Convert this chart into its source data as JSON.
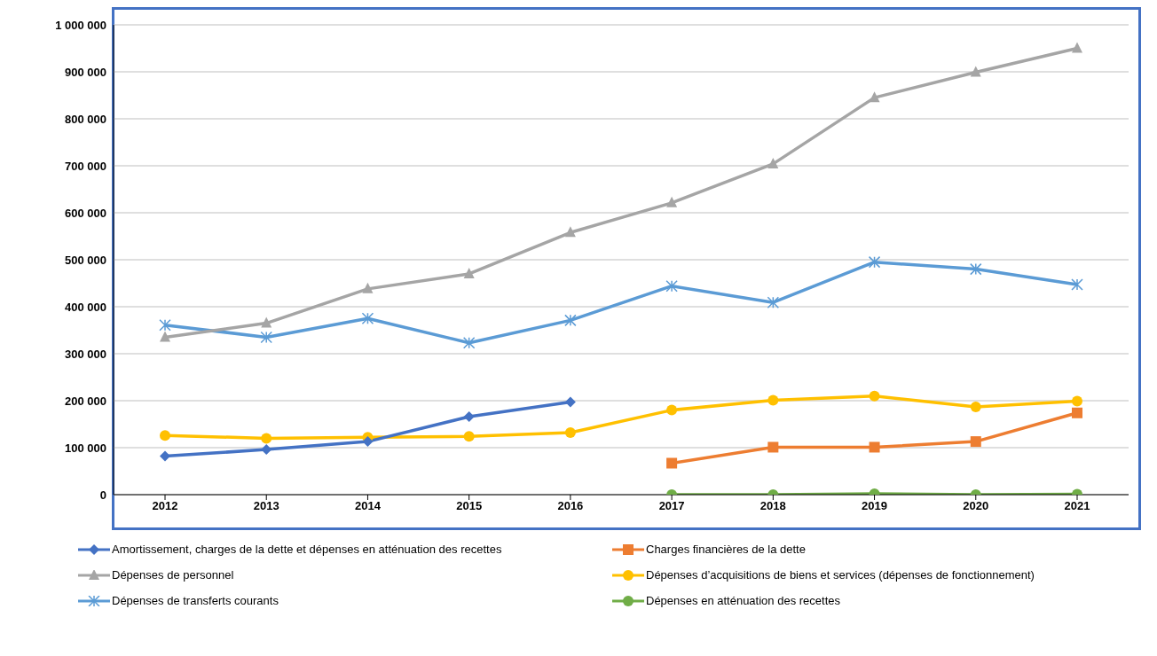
{
  "chart_data": {
    "type": "line",
    "categories": [
      "2012",
      "2013",
      "2014",
      "2015",
      "2016",
      "2017",
      "2018",
      "2019",
      "2020",
      "2021"
    ],
    "series": [
      {
        "name": "Amortissement, charges de la dette et dépenses en atténuation des recettes",
        "color": "#4472c4",
        "marker": "diamond",
        "values": [
          82000,
          96000,
          113000,
          166000,
          197000,
          null,
          null,
          null,
          null,
          null
        ]
      },
      {
        "name": "Charges financières de la dette",
        "color": "#ed7d31",
        "marker": "square",
        "values": [
          null,
          null,
          null,
          null,
          null,
          67000,
          101000,
          101000,
          113000,
          174000
        ]
      },
      {
        "name": "Dépenses de personnel",
        "color": "#a5a5a5",
        "marker": "triangle",
        "values": [
          335000,
          365000,
          438000,
          470000,
          558000,
          621000,
          704000,
          845000,
          899000,
          950000
        ]
      },
      {
        "name": "Dépenses d’acquisitions de biens et services (dépenses de fonctionnement)",
        "color": "#ffc000",
        "marker": "circle",
        "values": [
          126000,
          120000,
          122000,
          124000,
          132000,
          180000,
          201000,
          210000,
          187000,
          199000
        ]
      },
      {
        "name": "Dépenses de transferts courants",
        "color": "#5b9bd5",
        "marker": "cross",
        "values": [
          361000,
          335000,
          375000,
          323000,
          371000,
          444000,
          409000,
          495000,
          480000,
          447000
        ]
      },
      {
        "name": "Dépenses en atténuation des recettes",
        "color": "#70ad47",
        "marker": "circle",
        "values": [
          null,
          null,
          null,
          null,
          null,
          0,
          0,
          2000,
          0,
          1000
        ]
      }
    ],
    "ylim": [
      0,
      1000000
    ],
    "yticks": [
      {
        "value": 0,
        "label": "0"
      },
      {
        "value": 100000,
        "label": "100 000"
      },
      {
        "value": 200000,
        "label": "200 000"
      },
      {
        "value": 300000,
        "label": "300 000"
      },
      {
        "value": 400000,
        "label": "400 000"
      },
      {
        "value": 500000,
        "label": "500 000"
      },
      {
        "value": 600000,
        "label": "600 000"
      },
      {
        "value": 700000,
        "label": "700 000"
      },
      {
        "value": 800000,
        "label": "800 000"
      },
      {
        "value": 900000,
        "label": "900 000"
      },
      {
        "value": 1000000,
        "label": "1 000 000"
      }
    ],
    "grid": "y",
    "legend": "bottom",
    "line_style": "solid"
  }
}
